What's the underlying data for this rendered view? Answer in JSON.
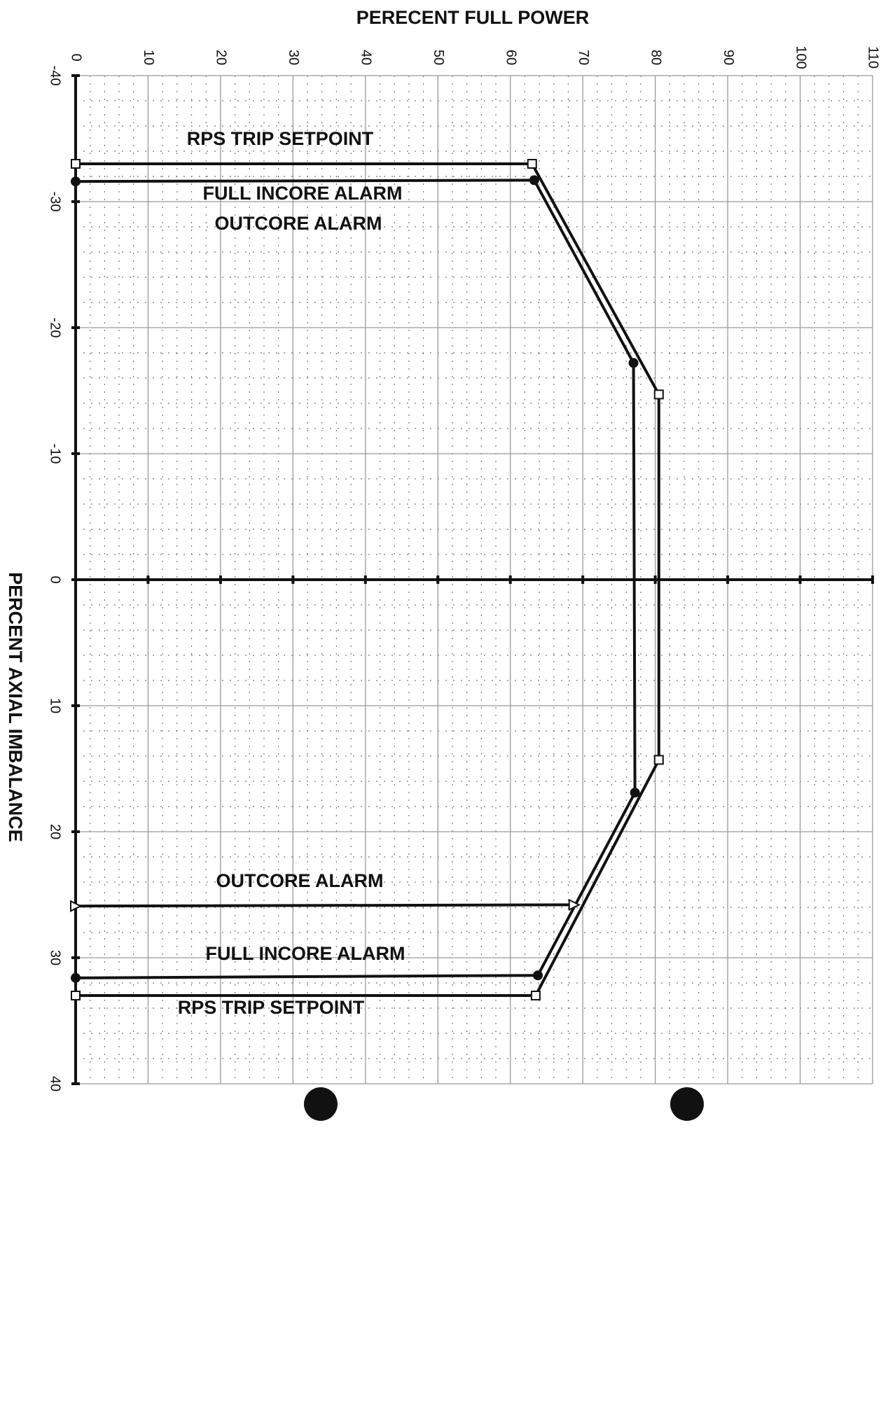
{
  "chart_data": {
    "type": "line",
    "title": "PERECENT FULL POWER",
    "y_label": "PERCENT AXIAL IMBALANCE",
    "xlim": [
      0,
      110
    ],
    "xticks": [
      0,
      10,
      20,
      30,
      40,
      50,
      60,
      70,
      80,
      90,
      100,
      110
    ],
    "ylim": [
      -40,
      40
    ],
    "yticks": [
      -40,
      -30,
      -20,
      -10,
      0,
      10,
      20,
      30,
      40
    ],
    "grid": true,
    "annotations": [
      "RPS TRIP SETPOINT",
      "FULL INCORE ALARM",
      "OUTCORE ALARM"
    ],
    "series": [
      {
        "name": "RPS TRIP SETPOINT",
        "color": "#111111",
        "marker": "square",
        "x": [
          0,
          63,
          80.5,
          80.5,
          63.5,
          0
        ],
        "values": [
          -33,
          -33,
          -14.7,
          14.3,
          33,
          33
        ]
      },
      {
        "name": "FULL INCORE ALARM",
        "color": "#111111",
        "marker": "circle",
        "x": [
          0,
          63.3,
          77,
          77.2,
          63.8,
          0
        ],
        "values": [
          -31.6,
          -31.7,
          -17.2,
          16.9,
          31.4,
          31.6
        ]
      },
      {
        "name": "OUTCORE ALARM",
        "color": "#111111",
        "marker": "triangle",
        "x": [
          0,
          68.8
        ],
        "values": [
          25.9,
          25.8
        ]
      }
    ]
  }
}
